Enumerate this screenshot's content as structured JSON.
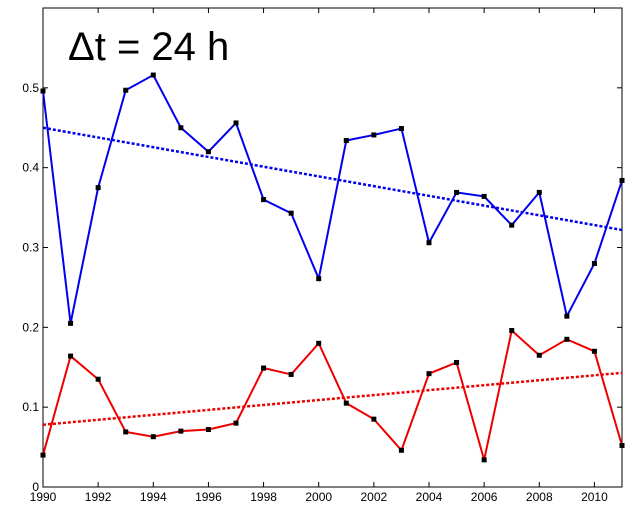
{
  "chart_data": {
    "type": "line",
    "annotation": "Δt = 24 h",
    "x": [
      1990,
      1991,
      1992,
      1993,
      1994,
      1995,
      1996,
      1997,
      1998,
      1999,
      2000,
      2001,
      2002,
      2003,
      2004,
      2005,
      2006,
      2007,
      2008,
      2009,
      2010,
      2011
    ],
    "series": [
      {
        "color": "#0000ee",
        "values": [
          0.496,
          0.205,
          0.375,
          0.497,
          0.516,
          0.45,
          0.42,
          0.456,
          0.36,
          0.343,
          0.261,
          0.434,
          0.441,
          0.449,
          0.306,
          0.369,
          0.364,
          0.328,
          0.369,
          0.214,
          0.28,
          0.384
        ]
      },
      {
        "color": "#ee0000",
        "values": [
          0.04,
          0.164,
          0.135,
          0.069,
          0.063,
          0.07,
          0.072,
          0.08,
          0.149,
          0.141,
          0.18,
          0.105,
          0.085,
          0.046,
          0.142,
          0.156,
          0.034,
          0.196,
          0.165,
          0.185,
          0.17,
          0.052
        ]
      }
    ],
    "trend_lines": [
      {
        "color": "#0000ee",
        "x": [
          1990,
          2011
        ],
        "values": [
          0.45,
          0.322
        ]
      },
      {
        "color": "#ee0000",
        "x": [
          1990,
          2011
        ],
        "values": [
          0.078,
          0.143
        ]
      }
    ],
    "xlim": [
      1990,
      2011
    ],
    "ylim": [
      0,
      0.6
    ],
    "xticks": [
      1990,
      1992,
      1994,
      1996,
      1998,
      2000,
      2002,
      2004,
      2006,
      2008,
      2010
    ],
    "yticks": [
      0,
      0.1,
      0.2,
      0.3,
      0.4,
      0.5
    ]
  }
}
